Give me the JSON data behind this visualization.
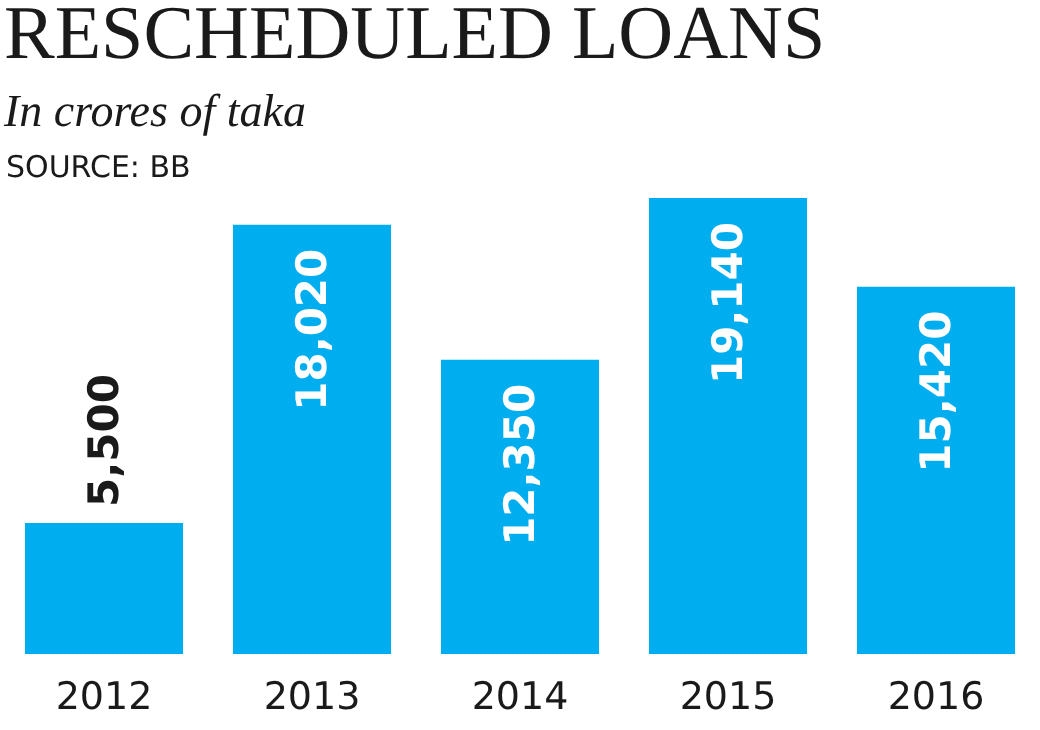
{
  "chart_data": {
    "type": "bar",
    "title": "RESCHEDULED LOANS",
    "subtitle": "In crores of taka",
    "annotations": [
      "SOURCE: BB"
    ],
    "categories": [
      "2012",
      "2013",
      "2014",
      "2015",
      "2016"
    ],
    "values": [
      5500,
      18020,
      12350,
      19140,
      15420
    ],
    "value_labels": [
      "5,500",
      "18,020",
      "12,350",
      "19,140",
      "15,420"
    ],
    "color": "#00aeef"
  }
}
